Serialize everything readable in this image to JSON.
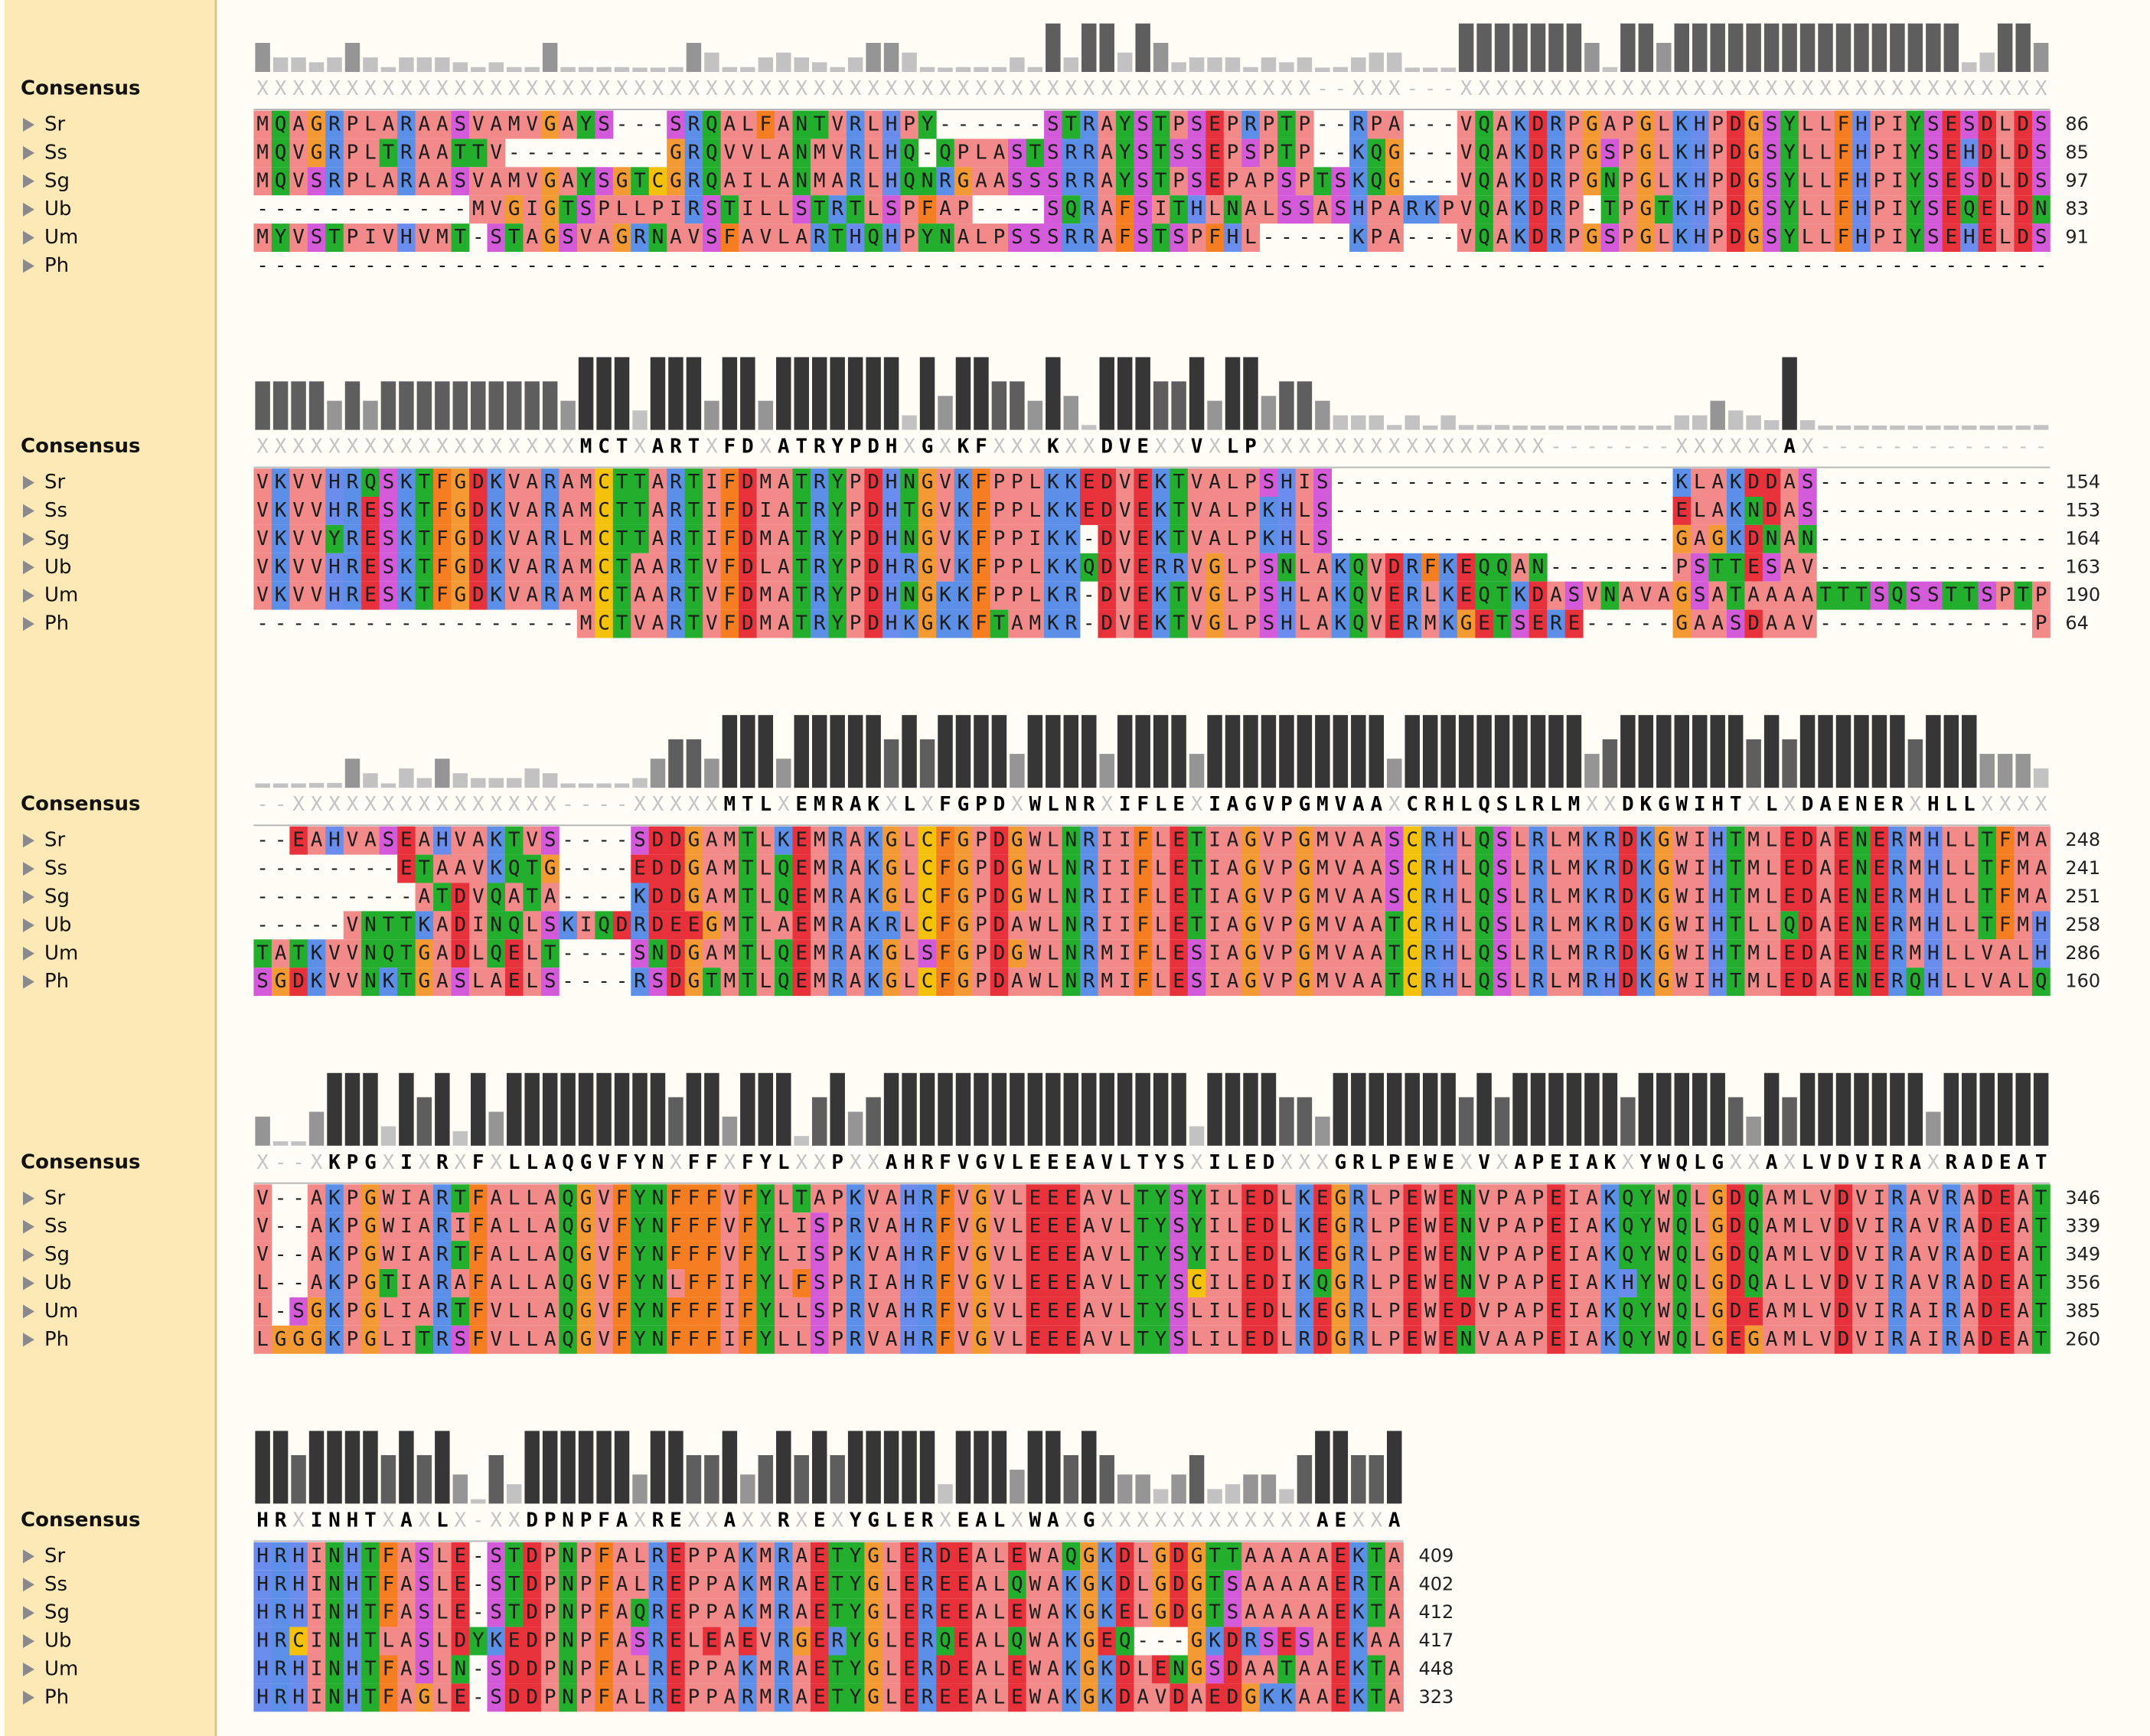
{
  "consensus_label": "Consensus",
  "sequence_names": [
    "Sr",
    "Ss",
    "Sg",
    "Ub",
    "Um",
    "Ph"
  ],
  "residue_colors": {
    "A": "#f28a8a",
    "V": "#f28a8a",
    "L": "#f28a8a",
    "I": "#f28a8a",
    "M": "#f28a8a",
    "W": "#f28a8a",
    "P": "#f28a8a",
    "F": "#f57e22",
    "G": "#f39a34",
    "C": "#f4c20d",
    "D": "#e8323b",
    "E": "#e8323b",
    "K": "#5b8fe8",
    "R": "#5b8fe8",
    "H": "#6a8cec",
    "S": "#d35ad8",
    "T": "#24ae2d",
    "N": "#24ae2d",
    "Q": "#24ae2d",
    "Y": "#24ae2d"
  },
  "blocks": [
    {
      "consensus": "XXXXXXXXXXXXXXXXXXXXXXXXXXXXXXXXXXXXXXXXXXXXXXXXXXXXXXXXXXX--XXX---XXXXXXXXXXXXXXXXXXXXXXXXXXXXXXXXX",
      "sequences": [
        "MQAGRPLARAASVAMVGAYS---SRQALFANTVRLHPY------STRAYSTPSEPRPTP--RPA---VQAKDRPGAPGLKHPDGSYLLFHPIYSESDLDS",
        "MQVGRPLTRAATTV---------GRQVVLANMVRLHQ-QPLASTSRRAYSTSSEPSPTP--KQG---VQAKDRPGSPGLKHPDGSYLLFHPIYSEHDLDS",
        "MQVSRPLARAASVAMVGAYSGTCGRQAILANMARLHQNRGAASSSRRAYSTPSEPAPSPTSKQG---VQAKDRPGNPGLKHPDGSYLLFHPIYSESDLDS",
        "------------MVGIGTSPLLPIRSTILLSTRTLSPFAP----SQRAFSITHLNALSSASHPARKPVQAKDRP-TPGTKHPDGSYLLFHPIYSEQELDN",
        "MYVSTPIVHVMT-STAGSVAGRNAVSFAVLARTHQHPYNALPSSSRRAFSTSPFHL-----KPA---VQAKDRPGSPGLKHPDGSYLLFHPIYSEHELDS",
        "----------------------------------------------------------------------------------------------------"
      ],
      "ends": [
        86,
        85,
        97,
        83,
        91,
        null
      ]
    },
    {
      "consensus": "XXXXXXXXXXXXXXXXXXMCTXARTXFDXATRYPDHXGXKFXXXKXXDVEXXVXLPXXXXXXXXXXXXXXXX-------XXXXXXAX-------------",
      "sequences": [
        "VKVVHRQSKTFGDKVARAMCTTARTIFDMATRYPDHNGVKFPPLKKEDVEKTVALPSHIS-------------------KLAKDDAS-------------",
        "VKVVHRESKTFGDKVARAMCTTARTIFDIATRYPDHTGVKFPPLKKEDVEKTVALPKHLS-------------------ELAKNDAS-------------",
        "VKVVYRESKTFGDKVARLMCTTARTIFDMATRYPDHNGVKFPPIKK-DVEKTVALPKHLS-------------------GAGKDNAN-------------",
        "VKVVHRESKTFGDKVARAMCTAARTVFDLATRYPDHRGVKFPPLKKQDVERRVGLPSNLAKQVDRFKEQQAN-------PSTTESAV-------------",
        "VKVVHRESKTFGDKVARAMCTAARTVFDMATRYPDHNGKKFPPLKR-DVEKTVGLPSHLAKQVERLKEQTKDASVNAVAGSATAAAATTTSQSSTTSPTP",
        "------------------MCTVARTVFDMATRYPDHKGKKFTAMKR-DVEKTVGLPSHLAKQVERMKGETSERE-----GAASDAAV------------P"
      ],
      "ends": [
        154,
        153,
        164,
        163,
        190,
        64
      ]
    },
    {
      "consensus": "--XXXXXXXXXXXXXXX----XXXXXMTLXEMRAKXLXFGPDXWLNRXIFLEXIAGVPGMVAAXCRHLQSLRLMXXDKGWIHTXLXDAENERXHLLXXXX",
      "sequences": [
        "--EAHVASEAHVAKTVS----SDDGAMTLKEMRAKGLCFGPDGWLNRIIFLETIAGVPGMVAASCRHLQSLRLMKRDKGWIHTMLEDAENERMHLLTFMA",
        "--------ETAAVKQTG----EDDGAMTLQEMRAKGLCFGPDGWLNRIIFLETIAGVPGMVAASCRHLQSLRLMKRDKGWIHTMLEDAENERMHLLTFMA",
        "---------ATDVQATA----KDDGAMTLQEMRAKGLCFGPDGWLNRIIFLETIAGVPGMVAASCRHLQSLRLMKRDKGWIHTMLEDAENERMHLLTFMA",
        "-----VNTTKADINQLSKIQDRDEEGMTLAEMRAKRLCFGPDAWLNRIIFLETIAGVPGMVAATCRHLQSLRLMKRDKGWIHTLLQDAENERMHLLTFMH",
        "TATKVVNQTGADLQELT----SNDGAMTLQEMRAKGLSFGPDGWLNRMIFLESIAGVPGMVAATCRHLQSLRLMRRDKGWIHTMLEDAENERMHLLVALH",
        "SGDKVVNKTGASLAELS----RSDGTMTLQEMRAKGLCFGPDAWLNRMIFLESIAGVPGMVAATCRHLQSLRLMRHDKGWIHTMLEDAENERQHLLVALQ"
      ],
      "ends": [
        248,
        241,
        251,
        258,
        286,
        160
      ]
    },
    {
      "consensus": "X--XKPGXIXRXFXLLAQGVFYNXFFXFYLXXPXXAHRFVGVLEEEAVLTYSXILEDXXXGRLPEWEXVXAPEIAKXYWQLGXXAXLVDVIRAXRADEAT",
      "sequences": [
        "V--AKPGWIARTFALLAQGVFYNFFFVFYLTAPKVAHRFVGVLEEEAVLTYSYILEDLKEGRLPEWENVPAPEIAKQYWQLGDQAMLVDVIRAVRADEAT",
        "V--AKPGWIARIFALLAQGVFYNFFFVFYLISPRVAHRFVGVLEEEAVLTYSYILEDLKEGRLPEWENVPAPEIAKQYWQLGDQAMLVDVIRAVRADEAT",
        "V--AKPGWIARTFALLAQGVFYNFFFVFYLISPKVAHRFVGVLEEEAVLTYSYILEDLKEGRLPEWENVPAPEIAKQYWQLGDQAMLVDVIRAVRADEAT",
        "L--AKPGTIARAFALLAQGVFYNLFFIFYLFSPRIAHRFVGVLEEEAVLTYSCILEDIKQGRLPEWENVPAPEIAKHYWQLGDQALLVDVIRAVRADEAT",
        "L-SGKPGLIARTFVLLAQGVFYNFFFIFYLLSPRVAHRFVGVLEEEAVLTYSLILEDLKEGRLPEWEDVPAPEIAKQYWQLGDEAMLVDVIRAIRADEAT",
        "LGGGKPGLITRSFVLLAQGVFYNFFFIFYLLSPRVAHRFVGVLEEEAVLTYSLILEDLRDGRLPEWENVAAPEIAKQYWQLGEGAMLVDVIRAIRADEAT"
      ],
      "ends": [
        346,
        339,
        349,
        356,
        385,
        260
      ]
    },
    {
      "consensus": "HRXINHTXAXLX-XXDPNPFAXREXXAXXRXEXYGLERXEALXWAXGXXXXXXXXXXXXAEXXA",
      "sequences": [
        "HRHINHTFASLE-STDPNPFALREPPAKMRAETYGLERDEALEWAQGKDLGDGTTAAAAAEKTA",
        "HRHINHTFASLE-STDPNPFALREPPAKMRAETYGLEREEALQWAKGKDLGDGTSAAAAAERTA",
        "HRHINHTFASLE-STDPNPFAQREPPAKMRAETYGLEREEALEWAKGKELGDGTSAAAAAEKTA",
        "HRCINHTLASLDYKEDPNPFASRELEAEVRGERYGLERQEALQWAKGEQ---GKDRSESAEKAA",
        "HRHINHTFASLN-SDDPNPFALREPPAKMRAETYGLERDEALEWAKGKDLENGSDAATAAEKTA",
        "HRHINHTFAGLE-SDDPNPFALREPPARMRAETYGLEREEALEWAKGKDAVDAEDGKKAAEKTA"
      ],
      "ends": [
        409,
        402,
        412,
        417,
        448,
        323
      ]
    }
  ]
}
